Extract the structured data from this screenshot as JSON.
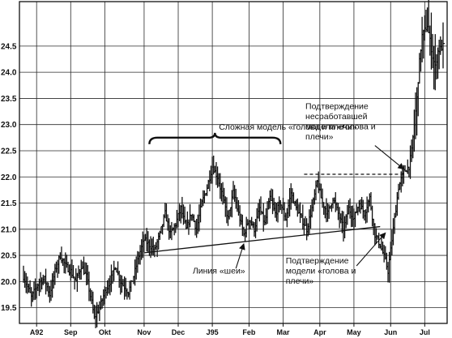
{
  "chart_data": {
    "type": "bar",
    "subtype": "ohlc-price",
    "title": "",
    "xlabel": "",
    "ylabel": "",
    "ylim": [
      19.2,
      25.35
    ],
    "yticks": [
      19.5,
      20.0,
      20.5,
      21.0,
      21.5,
      22.0,
      22.5,
      23.0,
      23.5,
      24.0,
      24.5
    ],
    "ytick_labels": [
      "19.5",
      "20.0",
      "20.5",
      "21.0",
      "21.5",
      "22.0",
      "22.5",
      "23.0",
      "23.5",
      "24.0",
      "24.5"
    ],
    "xticks": [
      {
        "label": "A92",
        "day": 5
      },
      {
        "label": "Sep",
        "day": 18
      },
      {
        "label": "Okt",
        "day": 31
      },
      {
        "label": "Nov",
        "day": 46
      },
      {
        "label": "Dec",
        "day": 59
      },
      {
        "label": "J95",
        "day": 72
      },
      {
        "label": "Feb",
        "day": 86
      },
      {
        "label": "Mar",
        "day": 99
      },
      {
        "label": "Apr",
        "day": 113
      },
      {
        "label": "May",
        "day": 126
      },
      {
        "label": "Jun",
        "day": 140
      },
      {
        "label": "Jul",
        "day": 153
      }
    ],
    "x_range": [
      0,
      160
    ],
    "grid": true,
    "legend": "none",
    "series": [
      {
        "values": [
          [
            0,
            20.1
          ],
          [
            3,
            19.7
          ],
          [
            6,
            20.0
          ],
          [
            8,
            20.05
          ],
          [
            10,
            19.75
          ],
          [
            12,
            20.2
          ],
          [
            14,
            20.5
          ],
          [
            16,
            20.3
          ],
          [
            18,
            20.2
          ],
          [
            20,
            20.0
          ],
          [
            22,
            20.3
          ],
          [
            24,
            20.1
          ],
          [
            26,
            19.6
          ],
          [
            27,
            19.3
          ],
          [
            29,
            19.5
          ],
          [
            31,
            19.8
          ],
          [
            33,
            20.0
          ],
          [
            35,
            20.3
          ],
          [
            37,
            20.0
          ],
          [
            40,
            19.8
          ],
          [
            42,
            20.1
          ],
          [
            44,
            20.5
          ],
          [
            46,
            20.8
          ],
          [
            48,
            20.7
          ],
          [
            50,
            20.6
          ],
          [
            52,
            20.9
          ],
          [
            54,
            21.3
          ],
          [
            56,
            20.9
          ],
          [
            58,
            21.1
          ],
          [
            60,
            21.4
          ],
          [
            62,
            21.0
          ],
          [
            64,
            21.3
          ],
          [
            66,
            21.0
          ],
          [
            68,
            21.5
          ],
          [
            70,
            21.8
          ],
          [
            72,
            22.2
          ],
          [
            74,
            22.0
          ],
          [
            76,
            21.6
          ],
          [
            78,
            21.2
          ],
          [
            80,
            21.7
          ],
          [
            82,
            21.3
          ],
          [
            84,
            20.9
          ],
          [
            86,
            21.2
          ],
          [
            88,
            21.0
          ],
          [
            90,
            21.4
          ],
          [
            92,
            21.1
          ],
          [
            94,
            21.6
          ],
          [
            96,
            21.3
          ],
          [
            98,
            21.5
          ],
          [
            100,
            21.2
          ],
          [
            102,
            21.7
          ],
          [
            104,
            21.4
          ],
          [
            106,
            21.2
          ],
          [
            108,
            21.0
          ],
          [
            110,
            21.4
          ],
          [
            112,
            21.9
          ],
          [
            114,
            21.5
          ],
          [
            116,
            21.3
          ],
          [
            118,
            21.6
          ],
          [
            120,
            21.3
          ],
          [
            122,
            21.0
          ],
          [
            124,
            21.4
          ],
          [
            126,
            21.2
          ],
          [
            128,
            21.5
          ],
          [
            130,
            21.3
          ],
          [
            132,
            21.6
          ],
          [
            134,
            20.9
          ],
          [
            136,
            20.7
          ],
          [
            138,
            20.4
          ],
          [
            139,
            20.2
          ],
          [
            141,
            21.0
          ],
          [
            143,
            21.8
          ],
          [
            145,
            22.1
          ],
          [
            147,
            22.2
          ],
          [
            148,
            22.5
          ],
          [
            150,
            23.5
          ],
          [
            151,
            24.2
          ],
          [
            152,
            24.7
          ],
          [
            154,
            24.9
          ],
          [
            156,
            24.3
          ],
          [
            157,
            24.1
          ],
          [
            158,
            24.4
          ],
          [
            160,
            24.5
          ]
        ]
      }
    ],
    "overlays": [
      {
        "kind": "line",
        "style": "solid",
        "points": [
          [
            46,
            20.55
          ],
          [
            136,
            21.05
          ]
        ]
      },
      {
        "kind": "line",
        "style": "dashed",
        "points": [
          [
            107,
            22.05
          ],
          [
            145,
            22.05
          ]
        ]
      }
    ],
    "annotations": [
      {
        "lines": [
          "Сложная модель «голова и плечи»"
        ],
        "anchor": [
          74.5,
          22.9
        ],
        "brace": [
          [
            48,
            98
          ],
          22.75
        ]
      },
      {
        "lines": [
          "Подтверждение",
          "несработавшей",
          "модели «голова и",
          "плечи»"
        ],
        "anchor": [
          107.5,
          23.3
        ],
        "arrow": [
          [
            134,
            22.6
          ],
          [
            145,
            22.15
          ]
        ]
      },
      {
        "lines": [
          "Линия «шеи»"
        ],
        "anchor": [
          64.5,
          20.15
        ],
        "arrow": [
          [
            81,
            20.25
          ],
          [
            84,
            20.72
          ]
        ]
      },
      {
        "lines": [
          "Подтверждение",
          "модели «голова и",
          "плечи»"
        ],
        "anchor": [
          100,
          20.35
        ],
        "arrow": [
          [
            127,
            20.3
          ],
          [
            138,
            20.93
          ]
        ]
      }
    ]
  }
}
